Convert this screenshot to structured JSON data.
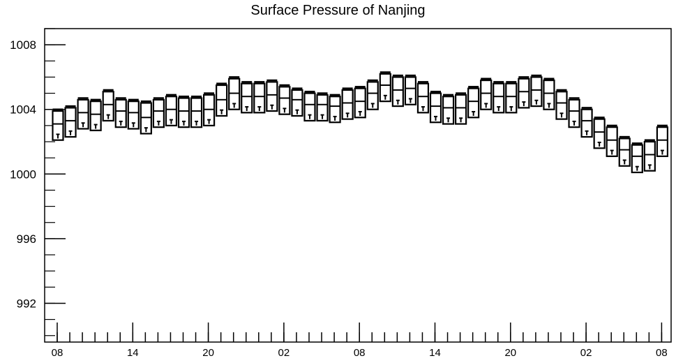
{
  "chart_data": {
    "type": "box",
    "title": "Surface Pressure of Nanjing",
    "xlabel": "",
    "ylabel": "",
    "ylim": [
      989.6,
      1009.0
    ],
    "ytick_values": [
      992,
      996,
      1000,
      1004,
      1008
    ],
    "ytick_labels": [
      "992",
      "996",
      "1000",
      "1004",
      "1008"
    ],
    "ytick_minor_step": 1,
    "xtick_labels": [
      "08",
      "14",
      "20",
      "02",
      "08",
      "14",
      "20",
      "02",
      "08"
    ],
    "xtick_label_hours": [
      0,
      6,
      12,
      18,
      24,
      30,
      36,
      42,
      48
    ],
    "x_minor_step_hours": 1,
    "x_hours": [
      0,
      1,
      2,
      3,
      4,
      5,
      6,
      7,
      8,
      9,
      10,
      11,
      12,
      13,
      14,
      15,
      16,
      17,
      18,
      19,
      20,
      21,
      22,
      23,
      24,
      25,
      26,
      27,
      28,
      29,
      30,
      31,
      32,
      33,
      34,
      35,
      36,
      37,
      38,
      39,
      40,
      41,
      42,
      43,
      44,
      45,
      46,
      47,
      48
    ],
    "q1": [
      1002.1,
      1002.3,
      1002.8,
      1002.7,
      1003.3,
      1002.9,
      1002.8,
      1002.5,
      1002.9,
      1003.0,
      1002.9,
      1002.9,
      1003.0,
      1003.6,
      1004.0,
      1003.8,
      1003.8,
      1003.9,
      1003.7,
      1003.6,
      1003.3,
      1003.3,
      1003.2,
      1003.4,
      1003.5,
      1004.0,
      1004.5,
      1004.2,
      1004.3,
      1003.8,
      1003.2,
      1003.1,
      1003.1,
      1003.5,
      1004.0,
      1003.8,
      1003.8,
      1004.1,
      1004.2,
      1004.0,
      1003.4,
      1002.9,
      1002.3,
      1001.6,
      1001.1,
      1000.5,
      1000.1,
      1000.2,
      1001.1
    ],
    "median": [
      1003.1,
      1003.3,
      1003.8,
      1003.7,
      1004.3,
      1003.9,
      1003.8,
      1003.5,
      1003.9,
      1004.0,
      1003.9,
      1003.9,
      1004.0,
      1004.6,
      1005.0,
      1004.8,
      1004.8,
      1004.9,
      1004.7,
      1004.6,
      1004.3,
      1004.3,
      1004.2,
      1004.4,
      1004.5,
      1005.0,
      1005.5,
      1005.2,
      1005.3,
      1004.8,
      1004.2,
      1004.1,
      1004.1,
      1004.5,
      1005.0,
      1004.8,
      1004.8,
      1005.1,
      1005.2,
      1005.0,
      1004.4,
      1003.9,
      1003.3,
      1002.6,
      1002.1,
      1001.5,
      1001.1,
      1001.2,
      1002.1
    ],
    "q3": [
      1003.9,
      1004.1,
      1004.6,
      1004.5,
      1005.1,
      1004.6,
      1004.5,
      1004.4,
      1004.6,
      1004.8,
      1004.7,
      1004.7,
      1004.9,
      1005.5,
      1005.9,
      1005.6,
      1005.6,
      1005.7,
      1005.4,
      1005.2,
      1005.0,
      1004.9,
      1004.8,
      1005.2,
      1005.3,
      1005.7,
      1006.2,
      1006.0,
      1006.0,
      1005.6,
      1005.0,
      1004.8,
      1004.9,
      1005.3,
      1005.8,
      1005.6,
      1005.6,
      1005.9,
      1006.0,
      1005.8,
      1005.1,
      1004.6,
      1004.0,
      1003.4,
      1002.9,
      1002.2,
      1001.8,
      1002.0,
      1002.9
    ],
    "whisker_high": [
      1004.0,
      1004.2,
      1004.7,
      1004.6,
      1005.2,
      1004.7,
      1004.6,
      1004.5,
      1004.7,
      1004.9,
      1004.8,
      1004.8,
      1005.0,
      1005.6,
      1006.0,
      1005.7,
      1005.7,
      1005.8,
      1005.5,
      1005.3,
      1005.1,
      1005.0,
      1004.9,
      1005.3,
      1005.4,
      1005.8,
      1006.3,
      1006.1,
      1006.1,
      1005.7,
      1005.1,
      1004.9,
      1005.0,
      1005.4,
      1005.9,
      1005.7,
      1005.7,
      1006.0,
      1006.1,
      1005.9,
      1005.2,
      1004.7,
      1004.1,
      1003.5,
      1003.0,
      1002.3,
      1001.9,
      1002.1,
      1003.0
    ],
    "whisker_low": [
      1002.2,
      1002.4,
      1002.9,
      1002.8,
      1003.4,
      1003.0,
      1002.9,
      1002.6,
      1003.0,
      1003.1,
      1003.0,
      1003.0,
      1003.1,
      1003.7,
      1004.1,
      1003.9,
      1003.9,
      1004.0,
      1003.8,
      1003.7,
      1003.4,
      1003.4,
      1003.3,
      1003.5,
      1003.6,
      1004.1,
      1004.6,
      1004.3,
      1004.4,
      1003.9,
      1003.3,
      1003.2,
      1003.2,
      1003.6,
      1004.1,
      1003.9,
      1003.9,
      1004.2,
      1004.3,
      1004.1,
      1003.5,
      1003.0,
      1002.4,
      1001.7,
      1001.2,
      1000.6,
      1000.2,
      1000.3,
      1001.2
    ],
    "colors": {
      "box": "#000000",
      "background": "#ffffff"
    },
    "grid": false,
    "legend": "none"
  }
}
